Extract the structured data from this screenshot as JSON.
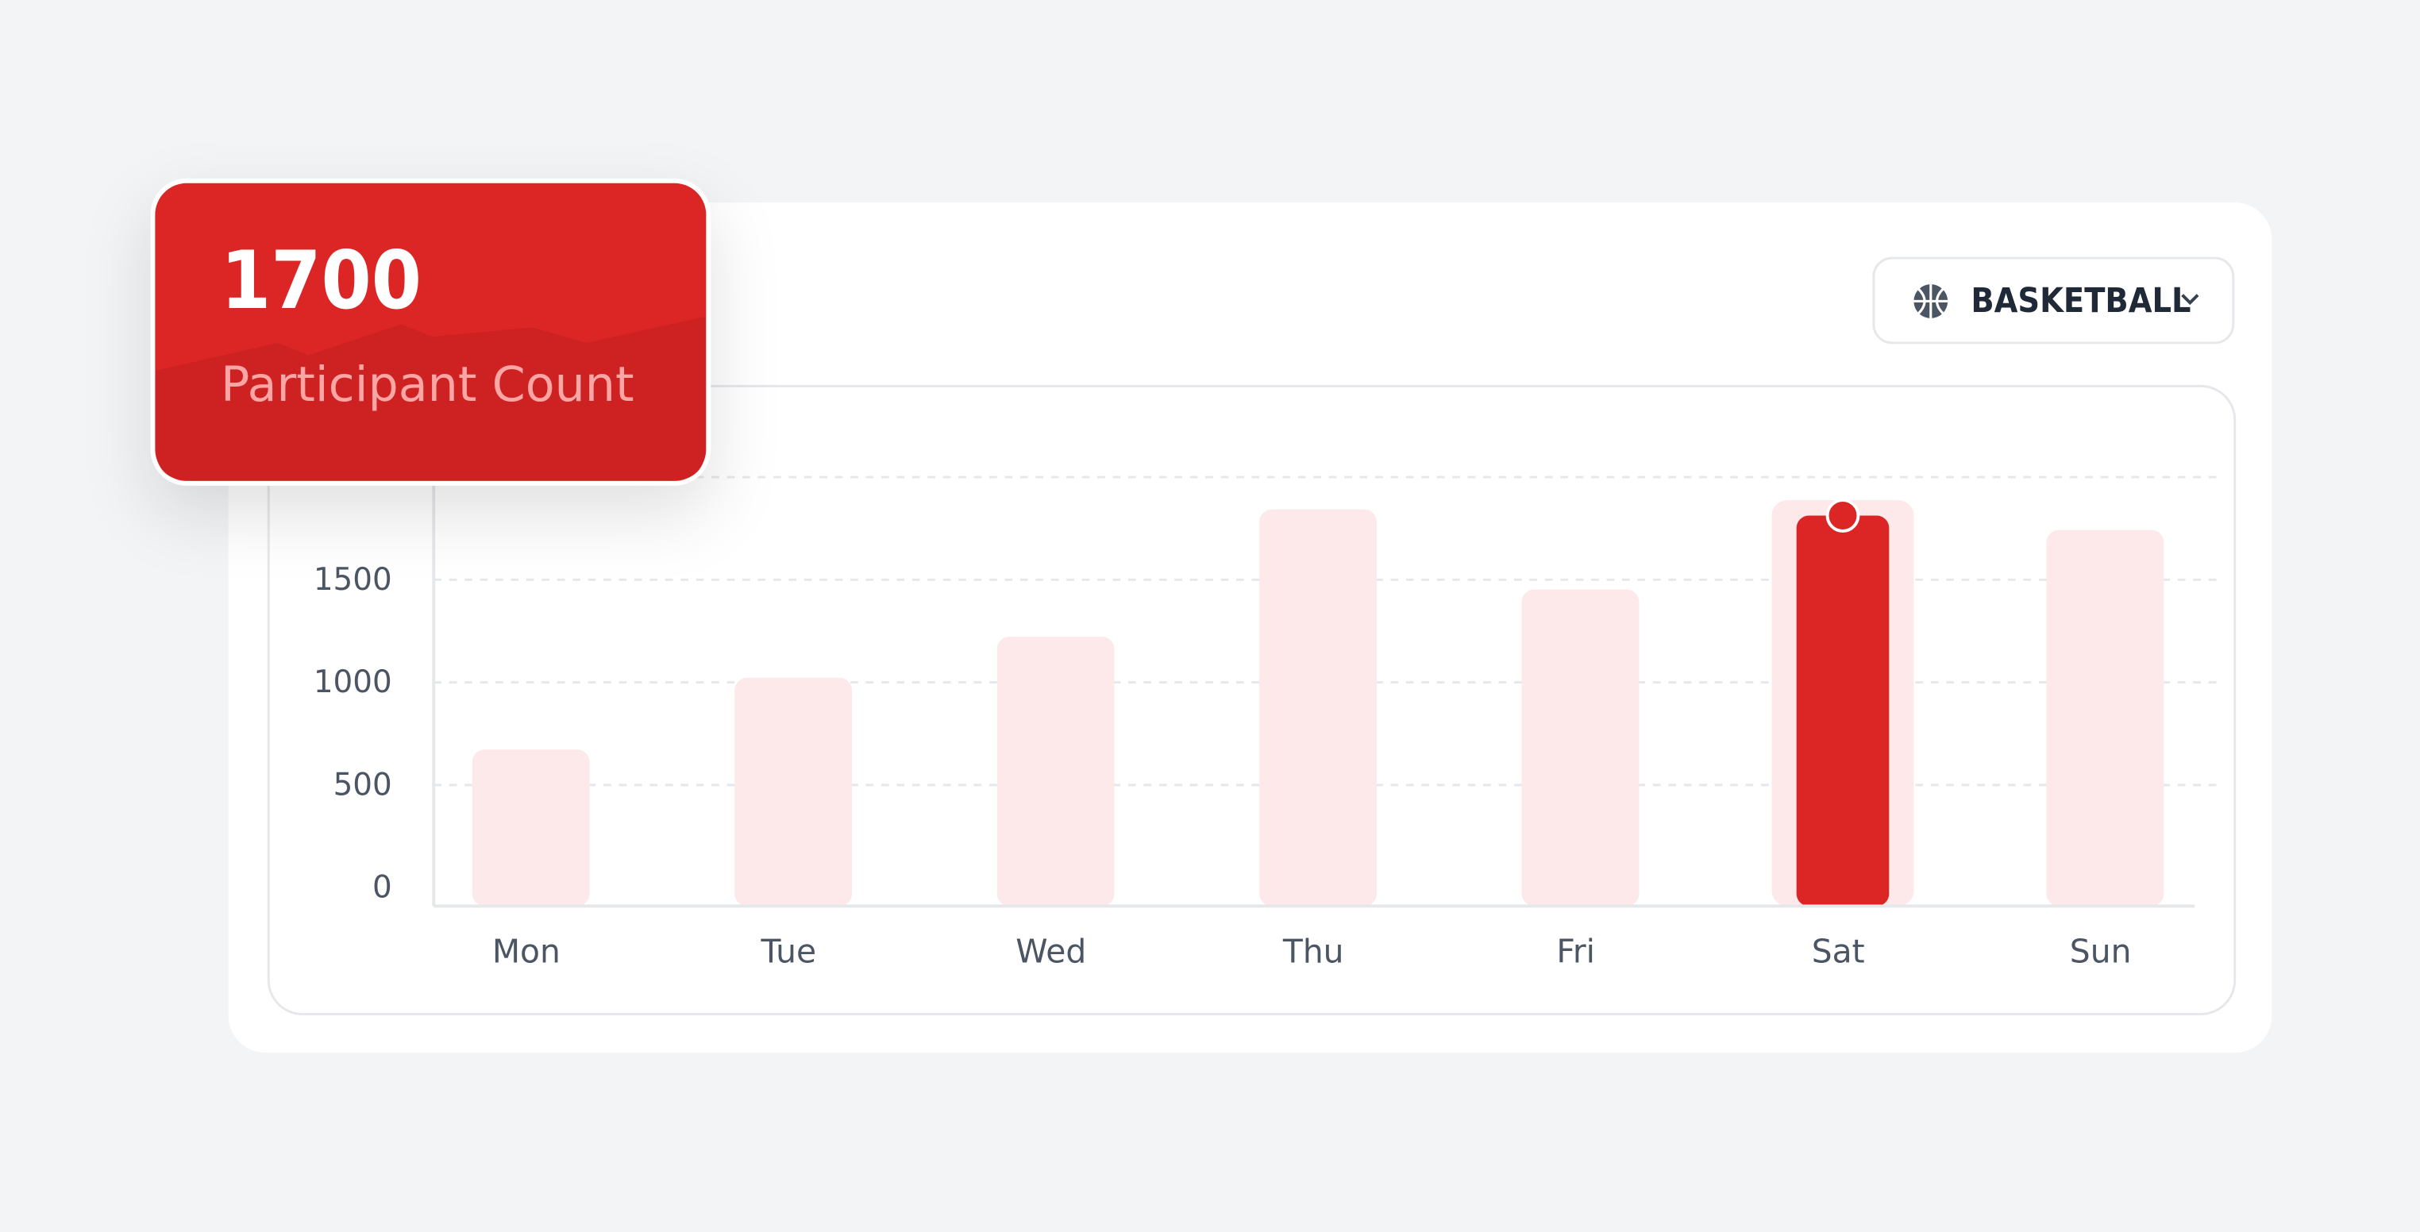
{
  "card": {
    "value": "1700",
    "label": "Participant Count"
  },
  "dropdown": {
    "label": "BASKETBALL"
  },
  "chart_data": {
    "type": "bar",
    "categories": [
      "Mon",
      "Tue",
      "Wed",
      "Thu",
      "Fri",
      "Sat",
      "Sun"
    ],
    "values": [
      710,
      1060,
      1260,
      1880,
      1490,
      1850,
      1780
    ],
    "color": "#fde8ea",
    "highlight": "Sat",
    "highlight_color": "#dc2626",
    "ylim": [
      0,
      2000
    ],
    "yticks": [
      0,
      500,
      1000,
      1500
    ],
    "grid": true
  }
}
